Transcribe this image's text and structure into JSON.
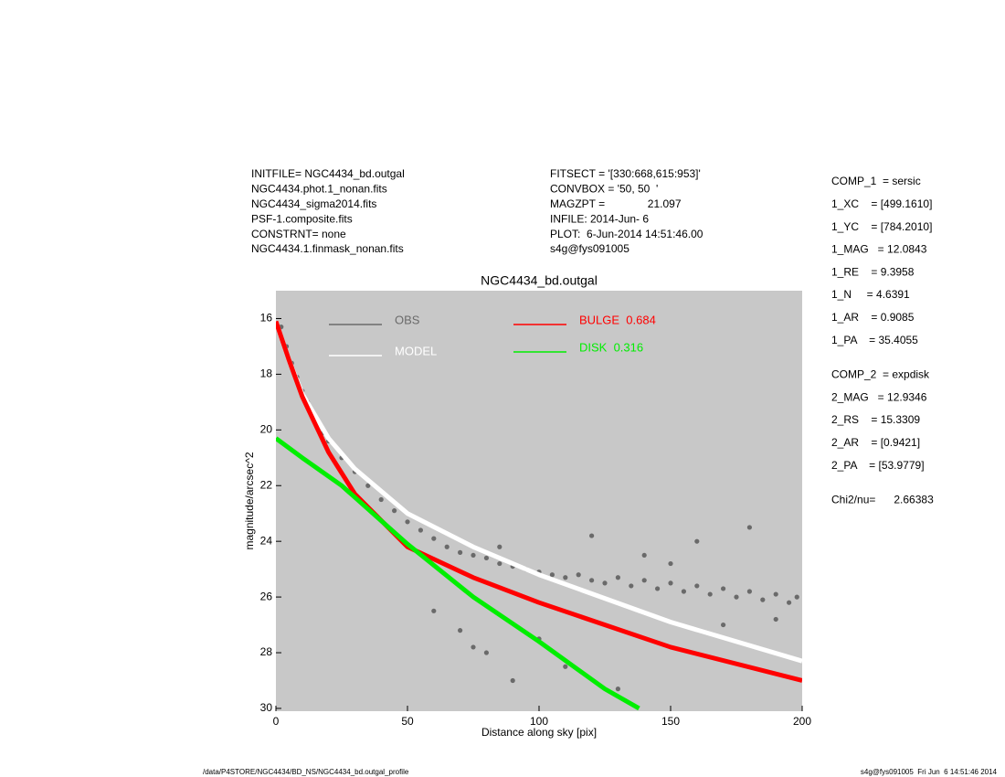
{
  "chart_data": {
    "type": "line",
    "title": "NGC4434_bd.outgal",
    "x_label": "Distance along sky [pix]",
    "y_label": "magnitude/arcsec^2",
    "xlim": [
      0,
      200
    ],
    "ylim": [
      30.1,
      15.0
    ],
    "xticks": [
      0,
      50,
      100,
      150,
      200
    ],
    "yticks": [
      16,
      18,
      20,
      22,
      24,
      26,
      28,
      30
    ],
    "background": "#c8c8c8",
    "header_left": [
      "INITFILE= NGC4434_bd.outgal",
      "NGC4434.phot.1_nonan.fits",
      "NGC4434_sigma2014.fits",
      "PSF-1.composite.fits",
      "CONSTRNT= none",
      "NGC4434.1.finmask_nonan.fits"
    ],
    "header_middle": [
      "FITSECT = '[330:668,615:953]'",
      "CONVBOX = '50, 50  '",
      "MAGZPT =              21.097",
      "INFILE: 2014-Jun- 6",
      "PLOT:  6-Jun-2014 14:51:46.00",
      "s4g@fys091005"
    ],
    "params": [
      [
        "COMP_1  = sersic",
        "1_XC    = [499.1610]",
        "1_YC    = [784.2010]",
        "1_MAG   = 12.0843",
        "1_RE    = 9.3958",
        "1_N     = 4.6391",
        "1_AR    = 0.9085",
        "1_PA    = 35.4055"
      ],
      [
        "COMP_2  = expdisk",
        "2_MAG   = 12.9346",
        "2_RS    = 15.3309",
        "2_AR    = [0.9421]",
        "2_PA    = [53.9779]"
      ],
      [
        "Chi2/nu=      2.66383"
      ]
    ],
    "footer_left": "/data/P4STORE/NGC4434/BD_NS/NGC4434_bd.outgal_profile",
    "footer_right": "s4g@fys091005  Fri Jun  6 14:51:46 2014",
    "series": [
      {
        "name": "OBS",
        "type": "scatter",
        "color": "#6a6a6a",
        "x": [
          2,
          4,
          6,
          8,
          10,
          12,
          15,
          18,
          20,
          25,
          30,
          35,
          40,
          45,
          50,
          55,
          60,
          65,
          70,
          75,
          80,
          85,
          90,
          95,
          100,
          105,
          110,
          115,
          120,
          125,
          130,
          135,
          140,
          145,
          150,
          155,
          160,
          165,
          170,
          175,
          180,
          185,
          190,
          195,
          198,
          60,
          70,
          80,
          90,
          100,
          120,
          140,
          160,
          180,
          75,
          85,
          110,
          130,
          150,
          170,
          190
        ],
        "values": [
          16.3,
          17.0,
          17.6,
          18.1,
          18.6,
          19.0,
          19.6,
          20.1,
          20.4,
          21.0,
          21.5,
          22.0,
          22.5,
          22.9,
          23.3,
          23.6,
          23.9,
          24.2,
          24.4,
          24.5,
          24.6,
          24.8,
          24.9,
          25.0,
          25.1,
          25.2,
          25.3,
          25.2,
          25.4,
          25.5,
          25.3,
          25.6,
          25.4,
          25.7,
          25.5,
          25.8,
          25.6,
          25.9,
          25.7,
          26.0,
          25.8,
          26.1,
          25.9,
          26.2,
          26.0,
          26.5,
          27.2,
          28.0,
          29.0,
          27.5,
          23.8,
          24.5,
          24.0,
          23.5,
          27.8,
          24.2,
          28.5,
          29.3,
          24.8,
          27.0,
          26.8
        ]
      },
      {
        "name": "MODEL",
        "type": "line",
        "color": "#ffffff",
        "x": [
          0,
          5,
          10,
          20,
          30,
          50,
          75,
          100,
          150,
          200
        ],
        "values": [
          16.1,
          17.5,
          18.7,
          20.3,
          21.4,
          23.0,
          24.2,
          25.2,
          26.9,
          28.3
        ]
      },
      {
        "name": "BULGE  0.684",
        "type": "line",
        "color": "#ff0000",
        "x": [
          0,
          5,
          10,
          20,
          30,
          50,
          75,
          100,
          150,
          200
        ],
        "values": [
          16.1,
          17.5,
          18.8,
          20.8,
          22.3,
          24.2,
          25.3,
          26.2,
          27.8,
          29.0
        ]
      },
      {
        "name": "DISK  0.316",
        "type": "line",
        "color": "#00ee00",
        "x": [
          0,
          10,
          25,
          50,
          75,
          100,
          125,
          138
        ],
        "values": [
          20.3,
          21.0,
          22.0,
          24.1,
          26.0,
          27.6,
          29.3,
          30.0
        ]
      }
    ]
  }
}
